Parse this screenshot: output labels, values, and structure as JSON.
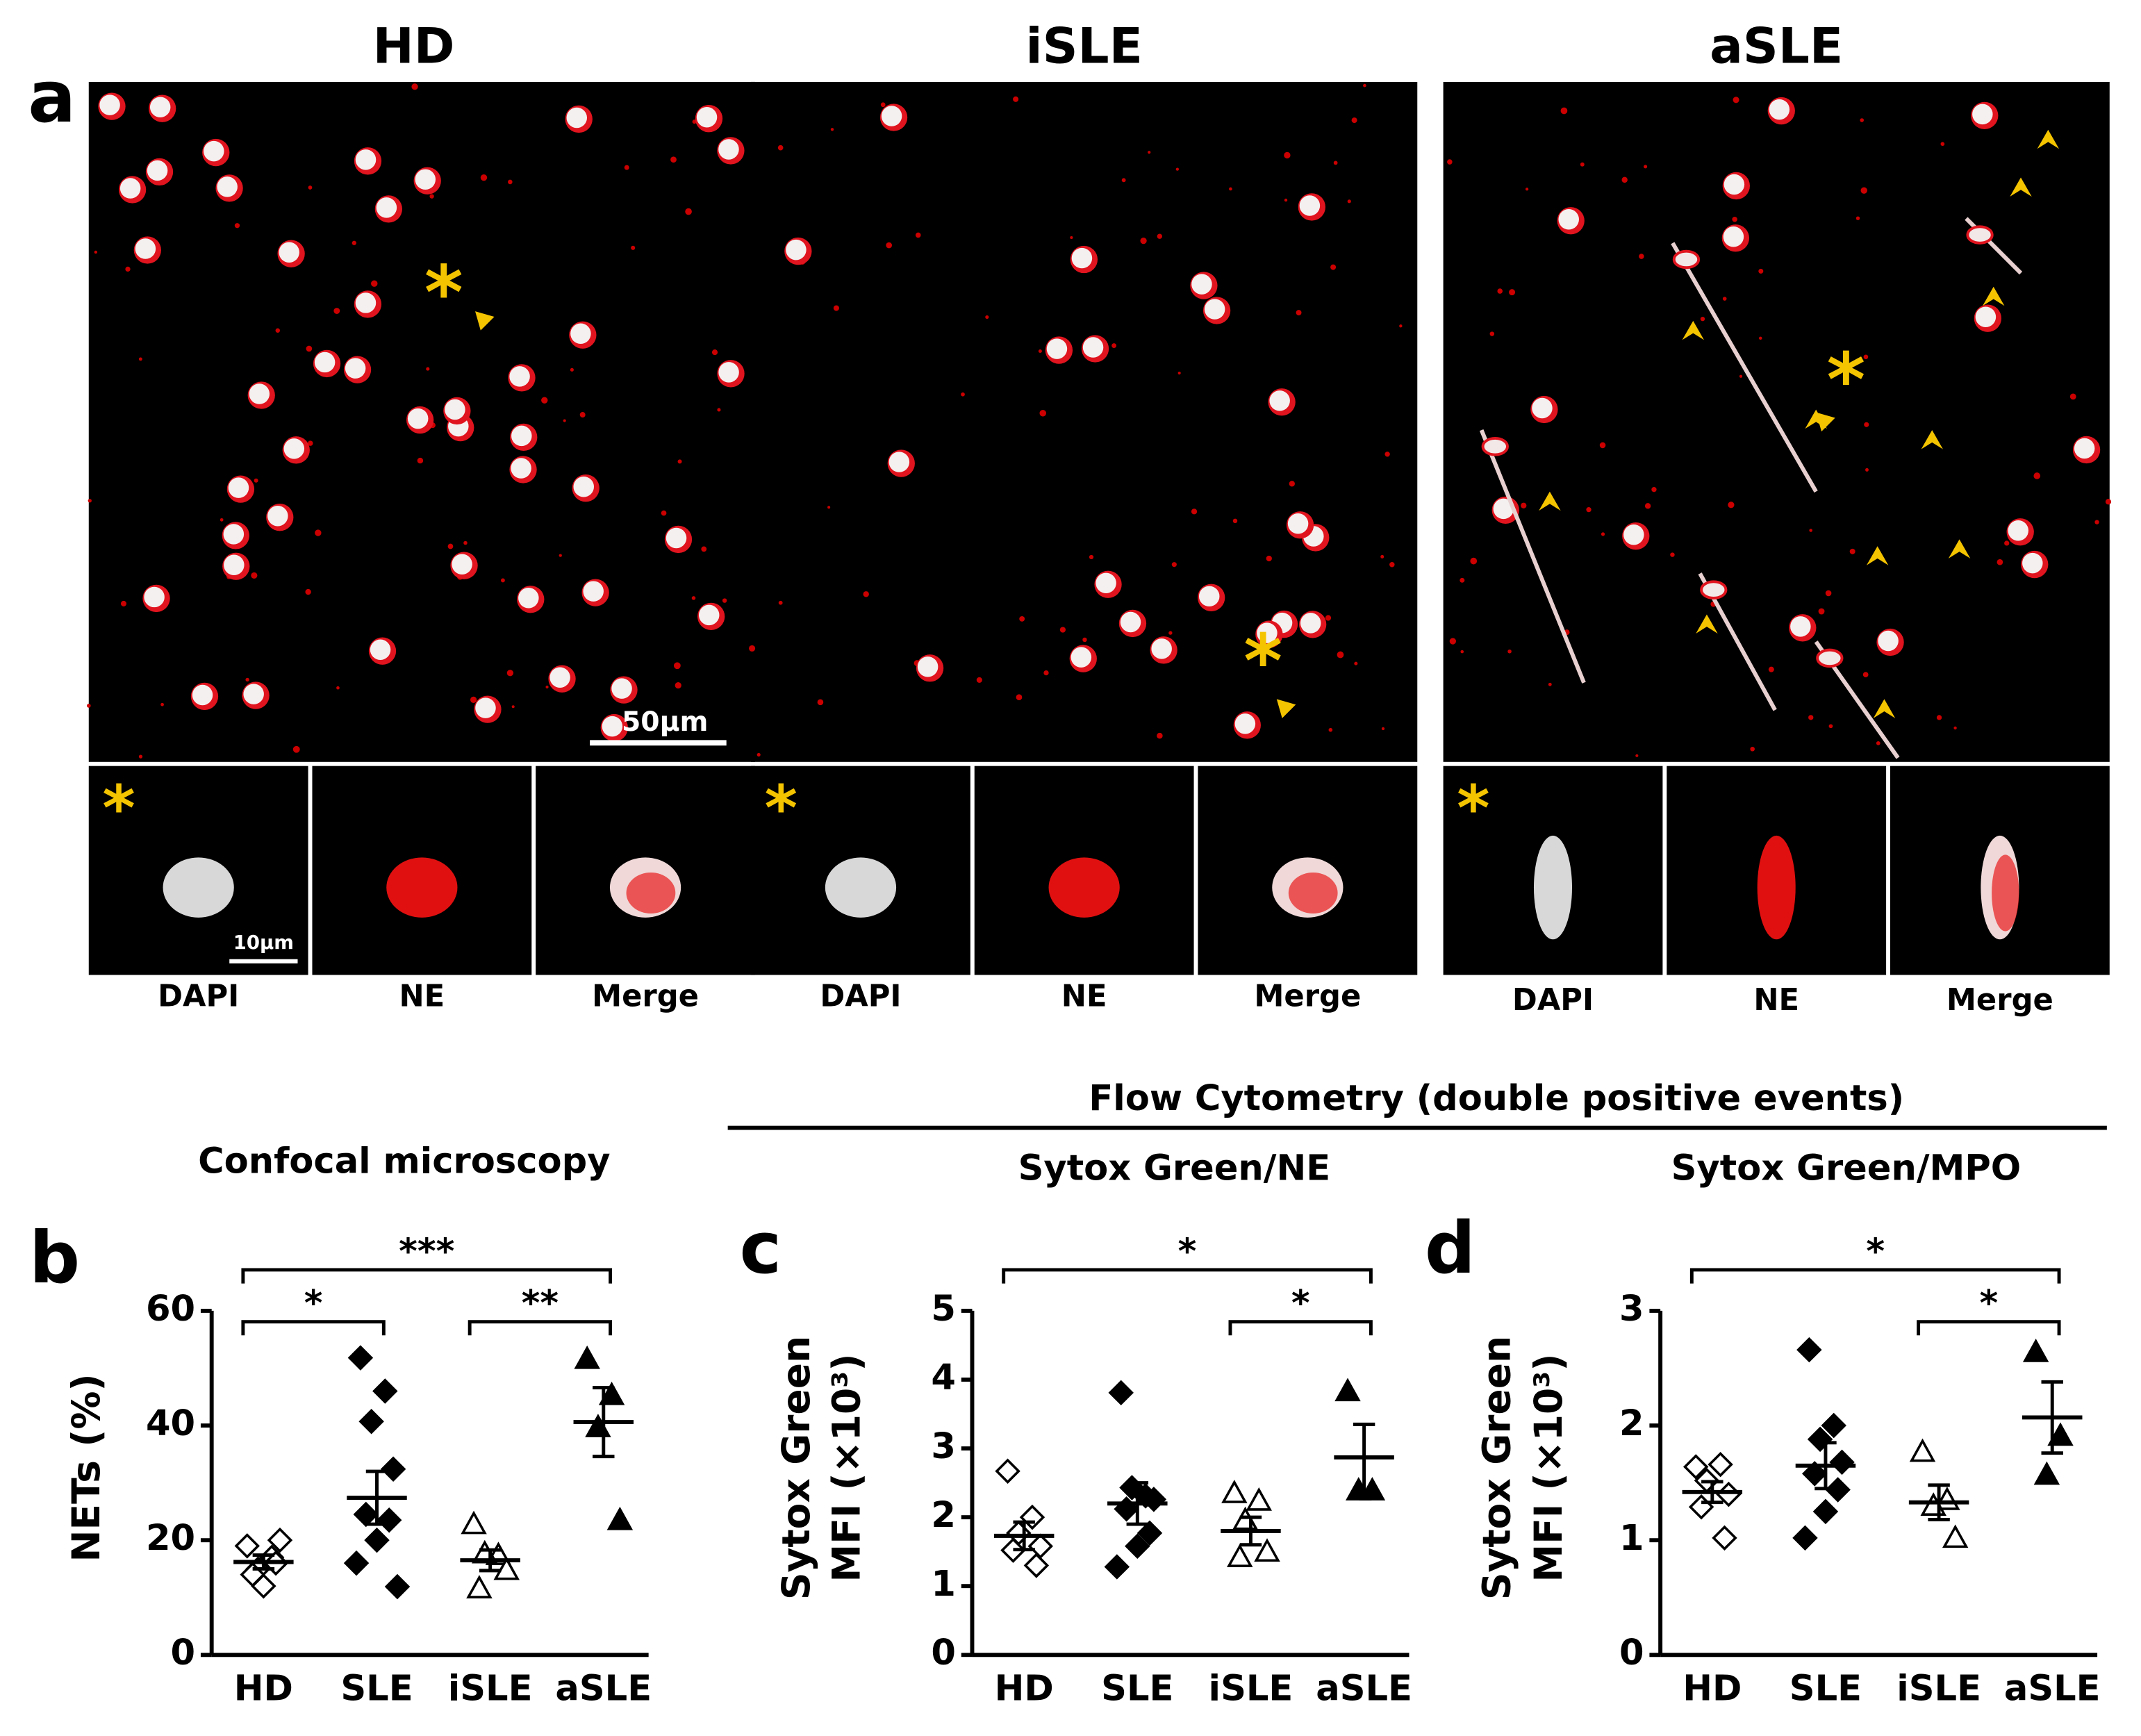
{
  "panel_a": {
    "label": "a",
    "columns": [
      {
        "title": "HD",
        "asterisk": "*",
        "insets": [
          "DAPI",
          "NE",
          "Merge"
        ]
      },
      {
        "title": "iSLE",
        "asterisk": "*",
        "insets": [
          "DAPI",
          "NE",
          "Merge"
        ]
      },
      {
        "title": "aSLE",
        "asterisk": "*",
        "insets": [
          "DAPI",
          "NE",
          "Merge"
        ]
      }
    ],
    "scale_bars": [
      "50µm",
      "10µm"
    ]
  },
  "flow_cytometry_title": "Flow Cytometry (double positive events)",
  "chart_data": [
    {
      "type": "dot",
      "panel": "b",
      "title": "Confocal microscopy",
      "ylabel": [
        "NETs (%)"
      ],
      "categories": [
        "HD",
        "SLE",
        "iSLE",
        "aSLE"
      ],
      "markers": [
        "diamond-open",
        "diamond-filled",
        "triangle-open",
        "triangle-filled"
      ],
      "points": [
        [
          19,
          17,
          15,
          20,
          14,
          16,
          12
        ],
        [
          51.8,
          46,
          40.7,
          32.4,
          24.5,
          23.5,
          20,
          16,
          11.9
        ],
        [
          22.8,
          17.4,
          17.7,
          14.8,
          11.6
        ],
        [
          51.6,
          45.3,
          39.7,
          23.5
        ]
      ],
      "means": [
        16.2,
        27.4,
        16.5,
        40.6
      ],
      "errors": [
        1.2,
        4.6,
        1.8,
        6
      ],
      "ylim": [
        0,
        60
      ],
      "yticks": [
        0,
        20,
        40,
        60
      ],
      "comparisons": [
        {
          "between": [
            "HD",
            "aSLE"
          ],
          "label": "***"
        },
        {
          "between": [
            "HD",
            "SLE"
          ],
          "label": "*"
        },
        {
          "between": [
            "iSLE",
            "aSLE"
          ],
          "label": "**"
        }
      ]
    },
    {
      "type": "dot",
      "panel": "c",
      "title": "Sytox Green/NE",
      "ylabel": [
        "Sytox Green",
        "MFI (×10³)"
      ],
      "categories": [
        "HD",
        "SLE",
        "iSLE",
        "aSLE"
      ],
      "markers": [
        "diamond-open",
        "diamond-filled",
        "triangle-open",
        "triangle-filled"
      ],
      "points": [
        [
          2.67,
          2.0,
          1.77,
          1.58,
          1.52,
          1.3
        ],
        [
          3.81,
          2.31,
          2.43,
          2.26,
          2.12,
          1.77,
          1.58,
          1.28
        ],
        [
          2.35,
          2.24,
          1.96,
          1.5,
          1.42
        ],
        [
          3.83,
          2.39,
          2.39
        ]
      ],
      "means": [
        1.73,
        2.2,
        1.8,
        2.87
      ],
      "errors": [
        0.2,
        0.3,
        0.2,
        0.48
      ],
      "ylim": [
        0,
        5
      ],
      "yticks": [
        0,
        1,
        2,
        3,
        4,
        5
      ],
      "comparisons": [
        {
          "between": [
            "HD",
            "aSLE"
          ],
          "label": "*"
        },
        {
          "between": [
            "iSLE",
            "aSLE"
          ],
          "label": "*"
        }
      ]
    },
    {
      "type": "dot",
      "panel": "d",
      "title": "Sytox Green/MPO",
      "ylabel": [
        "Sytox Green",
        "MFI (×10³)"
      ],
      "categories": [
        "HD",
        "SLE",
        "iSLE",
        "aSLE"
      ],
      "markers": [
        "diamond-open",
        "diamond-filled",
        "triangle-open",
        "triangle-filled"
      ],
      "points": [
        [
          1.64,
          1.66,
          1.52,
          1.4,
          1.29,
          1.02
        ],
        [
          2.66,
          2.0,
          1.88,
          1.68,
          1.58,
          1.44,
          1.25,
          1.02
        ],
        [
          1.77,
          1.35,
          1.3,
          1.02
        ],
        [
          2.64,
          1.91,
          1.57
        ]
      ],
      "means": [
        1.42,
        1.65,
        1.33,
        2.07
      ],
      "errors": [
        0.09,
        0.2,
        0.15,
        0.31
      ],
      "ylim": [
        0,
        3
      ],
      "yticks": [
        0,
        1,
        2,
        3
      ],
      "comparisons": [
        {
          "between": [
            "HD",
            "aSLE"
          ],
          "label": "*"
        },
        {
          "between": [
            "iSLE",
            "aSLE"
          ],
          "label": "*"
        }
      ]
    }
  ]
}
